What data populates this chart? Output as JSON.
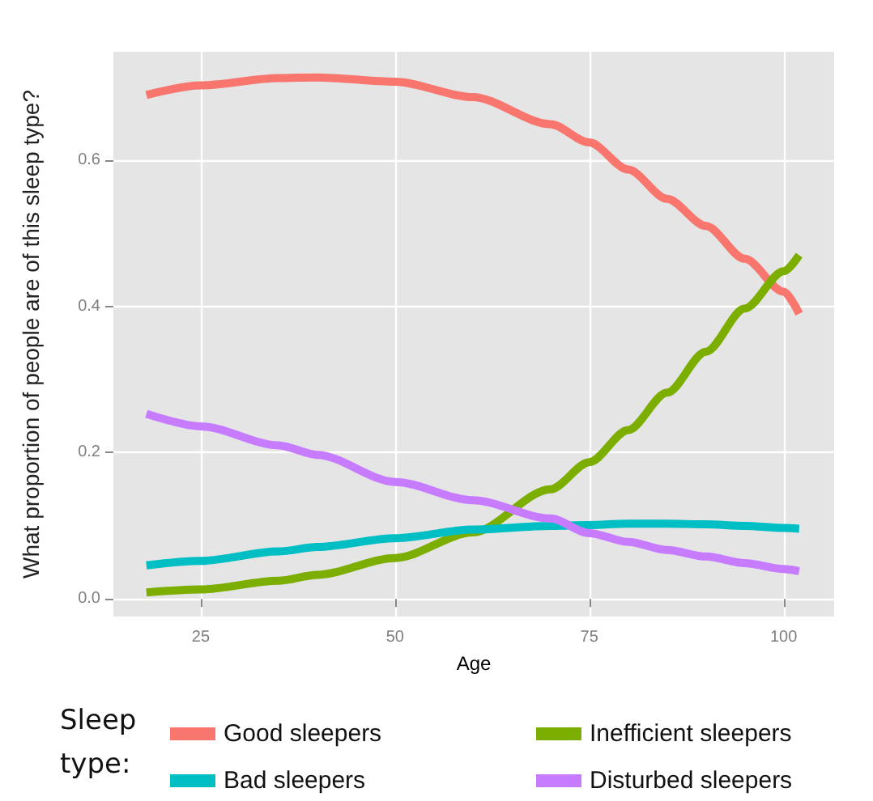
{
  "chart_data": {
    "type": "line",
    "xlabel": "Age",
    "ylabel": "What proportion of people are of this sleep type?",
    "legend_title": "Sleep type:",
    "x": [
      18,
      25,
      35,
      40,
      50,
      60,
      70,
      75,
      80,
      85,
      90,
      95,
      100,
      102
    ],
    "series": [
      {
        "name": "Good sleepers",
        "color": "#f8766d",
        "values": [
          0.689,
          0.702,
          0.712,
          0.713,
          0.707,
          0.686,
          0.649,
          0.624,
          0.587,
          0.547,
          0.51,
          0.465,
          0.42,
          0.39
        ]
      },
      {
        "name": "Inefficient sleepers",
        "color": "#7cae00",
        "values": [
          0.009,
          0.013,
          0.025,
          0.033,
          0.056,
          0.091,
          0.15,
          0.187,
          0.231,
          0.282,
          0.338,
          0.397,
          0.448,
          0.47
        ]
      },
      {
        "name": "Bad sleepers",
        "color": "#00bfc4",
        "values": [
          0.046,
          0.052,
          0.065,
          0.071,
          0.083,
          0.095,
          0.1,
          0.101,
          0.103,
          0.103,
          0.102,
          0.1,
          0.097,
          0.096
        ]
      },
      {
        "name": "Disturbed sleepers",
        "color": "#c77cff",
        "values": [
          0.253,
          0.236,
          0.21,
          0.197,
          0.16,
          0.135,
          0.11,
          0.09,
          0.078,
          0.067,
          0.058,
          0.049,
          0.041,
          0.038
        ]
      }
    ],
    "xlim": [
      13.75,
      106.5
    ],
    "xticks": [
      25,
      50,
      75,
      100
    ],
    "ylim": [
      -0.024,
      0.748
    ],
    "yticks": [
      {
        "value": 0,
        "label": "0.0"
      },
      0.2,
      0.4,
      0.6
    ],
    "grid": true,
    "legend": "bottom",
    "marker": "none",
    "line_style": "solid"
  }
}
